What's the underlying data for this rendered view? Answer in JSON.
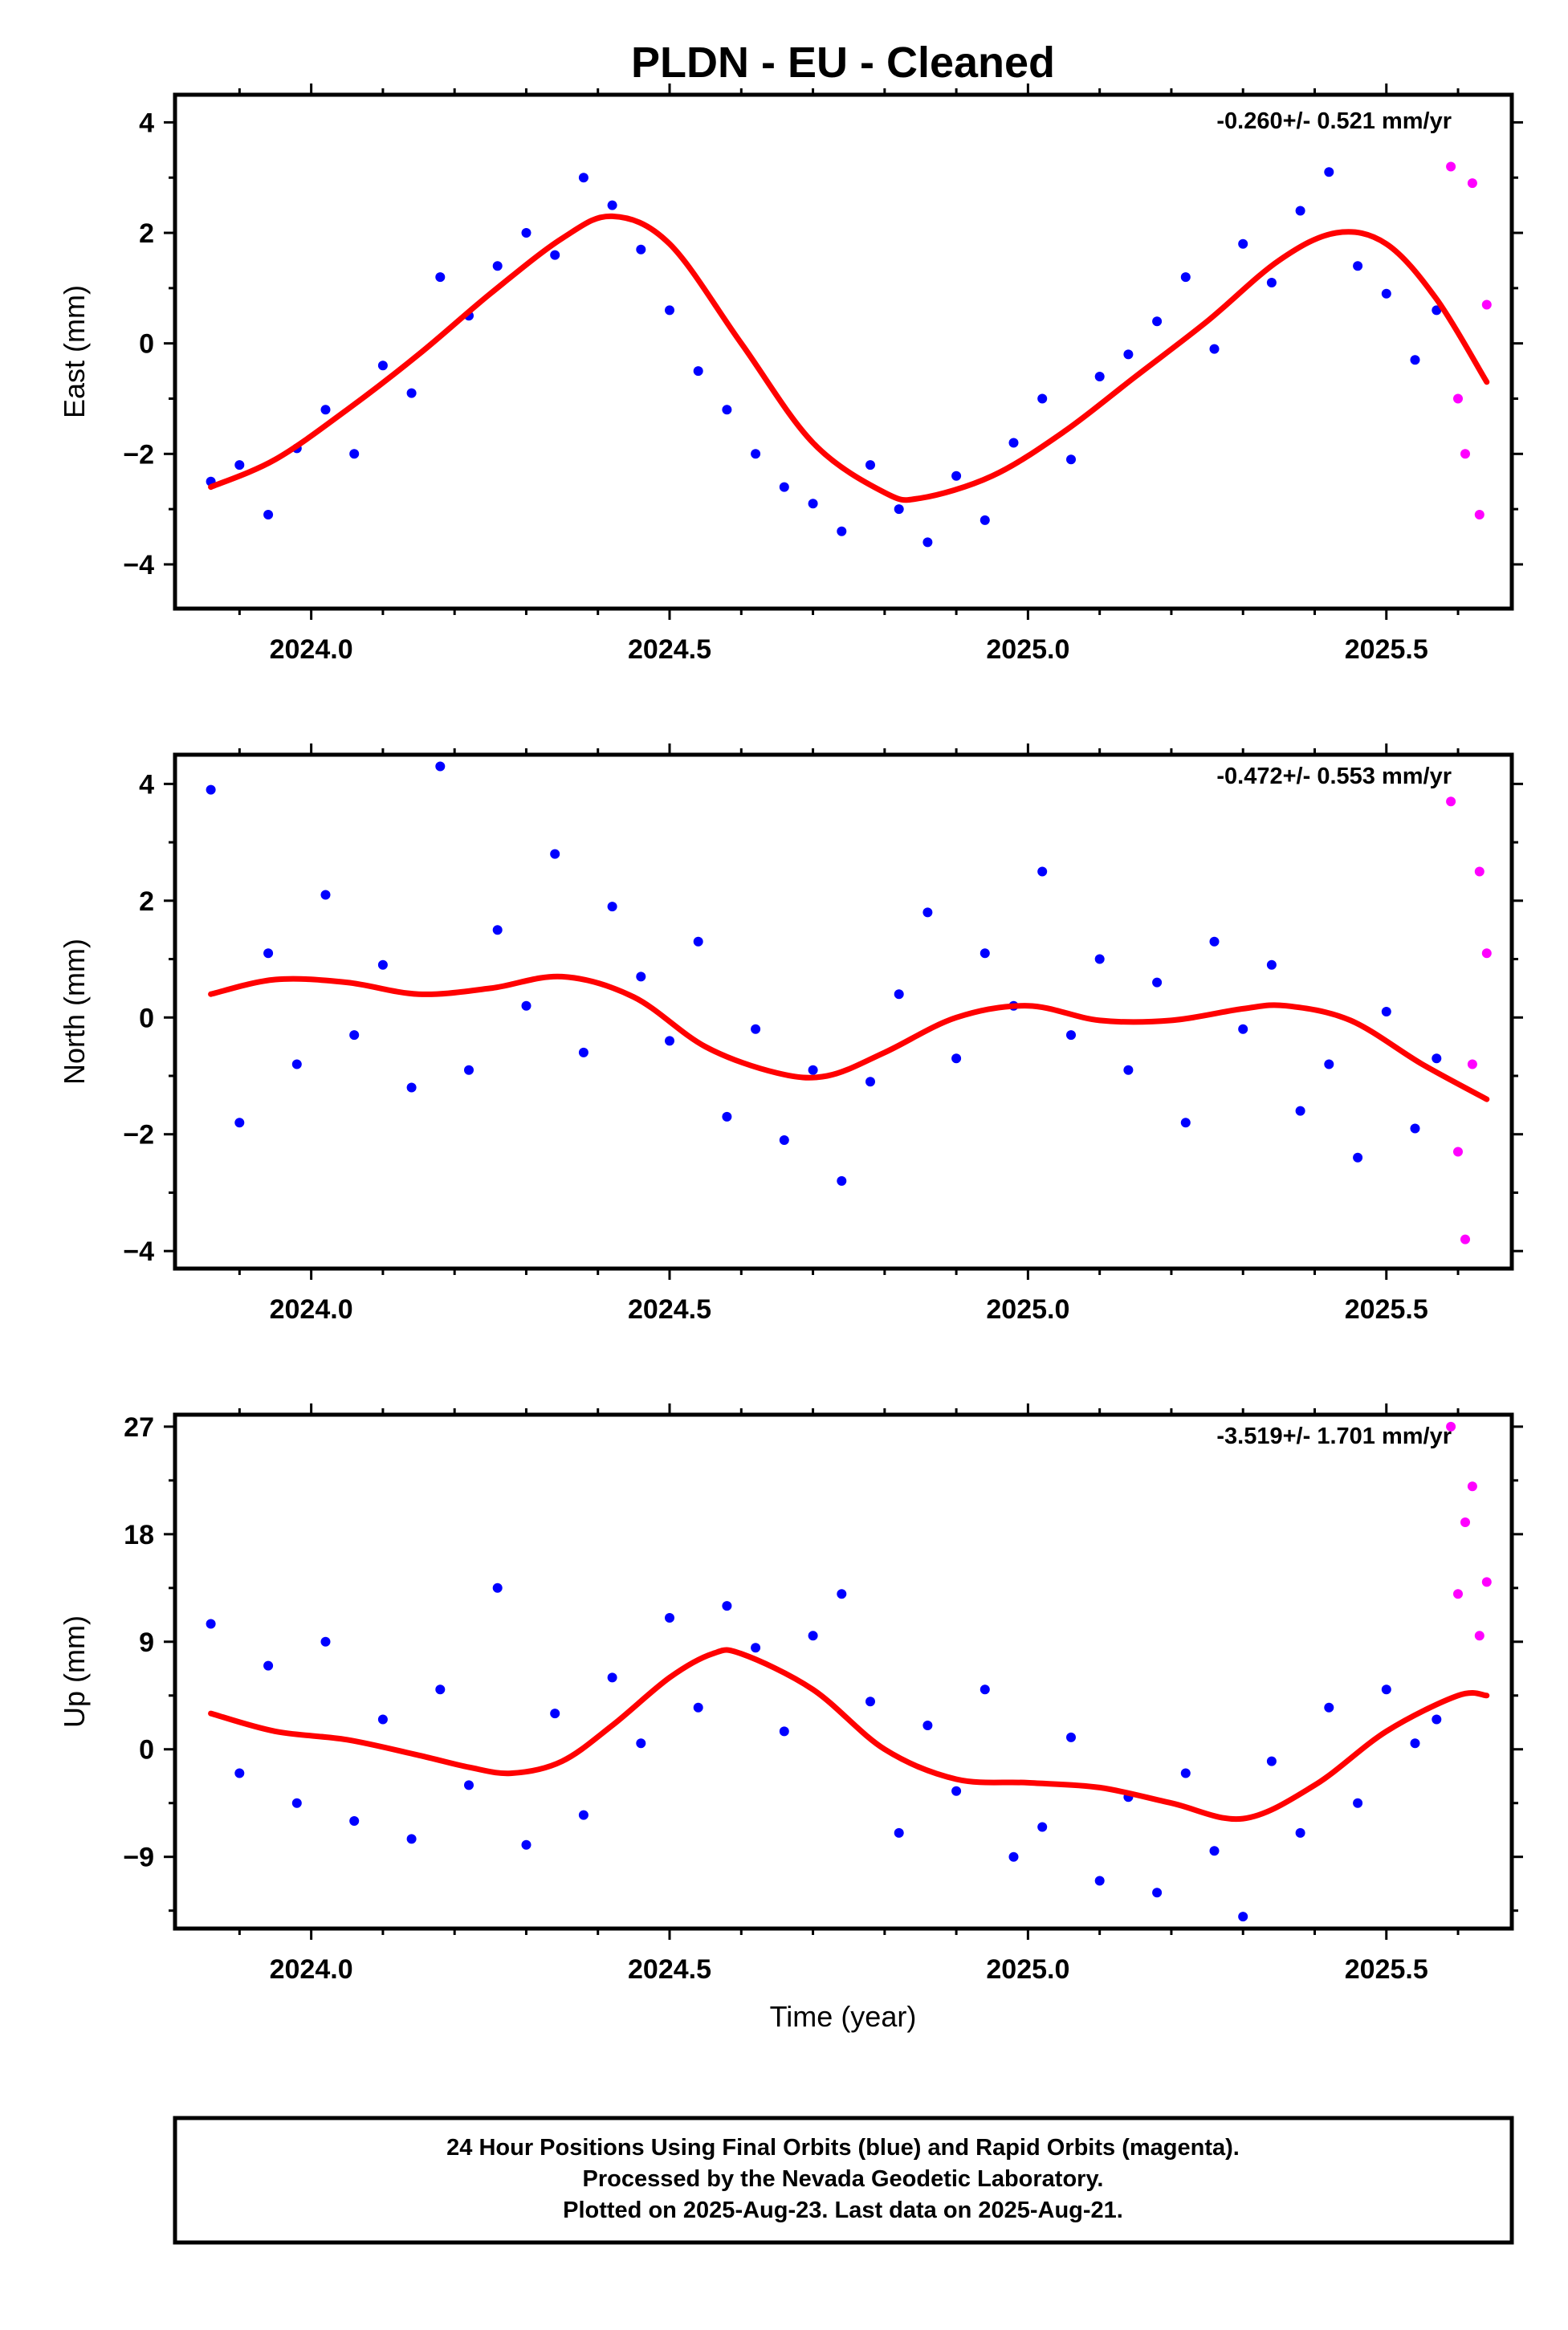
{
  "title": "PLDN  - EU - Cleaned",
  "xlabel": "Time (year)",
  "footer": {
    "line1": "24 Hour Positions Using Final Orbits (blue) and Rapid Orbits (magenta).",
    "line2": "Processed by the Nevada Geodetic Laboratory.",
    "line3": "Plotted on 2025-Aug-23. Last data on 2025-Aug-21."
  },
  "colors": {
    "final": "#0000ff",
    "rapid": "#ff00ff",
    "fit": "#ff0000",
    "frame": "#000000"
  },
  "chart_data": [
    {
      "type": "scatter",
      "ylabel": "East (mm)",
      "rate": "-0.260+/- 0.521 mm/yr",
      "xlim": [
        2023.81,
        2025.675
      ],
      "ylim": [
        -4.8,
        4.5
      ],
      "xticks": [
        2024.0,
        2024.5,
        2025.0,
        2025.5
      ],
      "xtick_labels": [
        "2024.0",
        "2024.5",
        "2025.0",
        "2025.5"
      ],
      "yticks": [
        -4,
        -2,
        0,
        2,
        4
      ],
      "ytick_labels": [
        "−4",
        "−2",
        "0",
        "2",
        "4"
      ],
      "grid": false,
      "series": [
        {
          "kind": "final",
          "x": [
            2023.86,
            2023.9,
            2023.94,
            2023.98,
            2024.02,
            2024.06,
            2024.1,
            2024.14,
            2024.18,
            2024.22,
            2024.26,
            2024.3,
            2024.34,
            2024.38,
            2024.42,
            2024.46,
            2024.5,
            2024.54,
            2024.58,
            2024.62,
            2024.66,
            2024.7,
            2024.74,
            2024.78,
            2024.82,
            2024.86,
            2024.9,
            2024.94,
            2024.98,
            2025.02,
            2025.06,
            2025.1,
            2025.14,
            2025.18,
            2025.22,
            2025.26,
            2025.3,
            2025.34,
            2025.38,
            2025.42,
            2025.46,
            2025.5,
            2025.54,
            2025.57
          ],
          "y": [
            -2.5,
            -2.2,
            -3.1,
            -1.9,
            -1.2,
            -2.0,
            -0.4,
            -0.9,
            1.2,
            0.5,
            1.4,
            2.0,
            1.6,
            3.0,
            2.5,
            1.7,
            0.6,
            -0.5,
            -1.2,
            -2.0,
            -2.6,
            -2.9,
            -3.4,
            -2.2,
            -3.0,
            -3.6,
            -2.4,
            -3.2,
            -1.8,
            -1.0,
            -2.1,
            -0.6,
            -0.2,
            0.4,
            1.2,
            -0.1,
            1.8,
            1.1,
            2.4,
            3.1,
            1.4,
            0.9,
            -0.3,
            0.6
          ]
        },
        {
          "kind": "rapid",
          "x": [
            2025.59,
            2025.6,
            2025.61,
            2025.62,
            2025.63,
            2025.64
          ],
          "y": [
            3.2,
            -1.0,
            -2.0,
            2.9,
            -3.1,
            0.7
          ]
        }
      ],
      "fit": {
        "x": [
          2023.86,
          2023.95,
          2024.05,
          2024.15,
          2024.25,
          2024.35,
          2024.42,
          2024.5,
          2024.6,
          2024.7,
          2024.8,
          2024.85,
          2024.95,
          2025.05,
          2025.15,
          2025.25,
          2025.35,
          2025.43,
          2025.5,
          2025.57,
          2025.64
        ],
        "y": [
          -2.6,
          -2.1,
          -1.2,
          -0.2,
          0.9,
          1.9,
          2.3,
          1.8,
          0.0,
          -1.8,
          -2.7,
          -2.8,
          -2.4,
          -1.6,
          -0.6,
          0.4,
          1.5,
          2.0,
          1.8,
          0.8,
          -0.7
        ]
      }
    },
    {
      "type": "scatter",
      "ylabel": "North (mm)",
      "rate": "-0.472+/- 0.553 mm/yr",
      "xlim": [
        2023.81,
        2025.675
      ],
      "ylim": [
        -4.3,
        4.5
      ],
      "xticks": [
        2024.0,
        2024.5,
        2025.0,
        2025.5
      ],
      "xtick_labels": [
        "2024.0",
        "2024.5",
        "2025.0",
        "2025.5"
      ],
      "yticks": [
        -4,
        -2,
        0,
        2,
        4
      ],
      "ytick_labels": [
        "−4",
        "−2",
        "0",
        "2",
        "4"
      ],
      "grid": false,
      "series": [
        {
          "kind": "final",
          "x": [
            2023.86,
            2023.9,
            2023.94,
            2023.98,
            2024.02,
            2024.06,
            2024.1,
            2024.14,
            2024.18,
            2024.22,
            2024.26,
            2024.3,
            2024.34,
            2024.38,
            2024.42,
            2024.46,
            2024.5,
            2024.54,
            2024.58,
            2024.62,
            2024.66,
            2024.7,
            2024.74,
            2024.78,
            2024.82,
            2024.86,
            2024.9,
            2024.94,
            2024.98,
            2025.02,
            2025.06,
            2025.1,
            2025.14,
            2025.18,
            2025.22,
            2025.26,
            2025.3,
            2025.34,
            2025.38,
            2025.42,
            2025.46,
            2025.5,
            2025.54,
            2025.57
          ],
          "y": [
            3.9,
            -1.8,
            1.1,
            -0.8,
            2.1,
            -0.3,
            0.9,
            -1.2,
            4.3,
            -0.9,
            1.5,
            0.2,
            2.8,
            -0.6,
            1.9,
            0.7,
            -0.4,
            1.3,
            -1.7,
            -0.2,
            -2.1,
            -0.9,
            -2.8,
            -1.1,
            0.4,
            1.8,
            -0.7,
            1.1,
            0.2,
            2.5,
            -0.3,
            1.0,
            -0.9,
            0.6,
            -1.8,
            1.3,
            -0.2,
            0.9,
            -1.6,
            -0.8,
            -2.4,
            0.1,
            -1.9,
            -0.7
          ]
        },
        {
          "kind": "rapid",
          "x": [
            2025.59,
            2025.6,
            2025.61,
            2025.62,
            2025.63,
            2025.64
          ],
          "y": [
            3.7,
            -2.3,
            -3.8,
            -0.8,
            2.5,
            1.1
          ]
        }
      ],
      "fit": {
        "x": [
          2023.86,
          2023.95,
          2024.05,
          2024.15,
          2024.25,
          2024.35,
          2024.45,
          2024.55,
          2024.65,
          2024.72,
          2024.8,
          2024.9,
          2025.0,
          2025.1,
          2025.2,
          2025.3,
          2025.36,
          2025.45,
          2025.55,
          2025.64
        ],
        "y": [
          0.4,
          0.65,
          0.6,
          0.4,
          0.5,
          0.7,
          0.35,
          -0.5,
          -0.95,
          -1.0,
          -0.6,
          0.0,
          0.2,
          -0.05,
          -0.05,
          0.15,
          0.2,
          -0.05,
          -0.8,
          -1.4
        ]
      }
    },
    {
      "type": "scatter",
      "ylabel": "Up (mm)",
      "rate": "-3.519+/- 1.701 mm/yr",
      "xlim": [
        2023.81,
        2025.675
      ],
      "ylim": [
        -15,
        28
      ],
      "xticks": [
        2024.0,
        2024.5,
        2025.0,
        2025.5
      ],
      "xtick_labels": [
        "2024.0",
        "2024.5",
        "2025.0",
        "2025.5"
      ],
      "yticks": [
        -9,
        0,
        9,
        18,
        27
      ],
      "ytick_labels": [
        "−9",
        "0",
        "9",
        "18",
        "27"
      ],
      "grid": false,
      "series": [
        {
          "kind": "final",
          "x": [
            2023.86,
            2023.9,
            2023.94,
            2023.98,
            2024.02,
            2024.06,
            2024.1,
            2024.14,
            2024.18,
            2024.22,
            2024.26,
            2024.3,
            2024.34,
            2024.38,
            2024.42,
            2024.46,
            2024.5,
            2024.54,
            2024.58,
            2024.62,
            2024.66,
            2024.7,
            2024.74,
            2024.78,
            2024.82,
            2024.86,
            2024.9,
            2024.94,
            2024.98,
            2025.02,
            2025.06,
            2025.1,
            2025.14,
            2025.18,
            2025.22,
            2025.26,
            2025.3,
            2025.34,
            2025.38,
            2025.42,
            2025.46,
            2025.5,
            2025.54,
            2025.57
          ],
          "y": [
            10.5,
            -2.0,
            7.0,
            -4.5,
            9.0,
            -6.0,
            2.5,
            -7.5,
            5.0,
            -3.0,
            13.5,
            -8.0,
            3.0,
            -5.5,
            6.0,
            0.5,
            11.0,
            3.5,
            12.0,
            8.5,
            1.5,
            9.5,
            13.0,
            4.0,
            -7.0,
            2.0,
            -3.5,
            5.0,
            -9.0,
            -6.5,
            1.0,
            -11.0,
            -4.0,
            -12.0,
            -2.0,
            -8.5,
            -14.0,
            -1.0,
            -7.0,
            3.5,
            -4.5,
            5.0,
            0.5,
            2.5
          ]
        },
        {
          "kind": "rapid",
          "x": [
            2025.59,
            2025.6,
            2025.61,
            2025.62,
            2025.63,
            2025.64
          ],
          "y": [
            27.0,
            13.0,
            19.0,
            22.0,
            9.5,
            14.0
          ]
        }
      ],
      "fit": {
        "x": [
          2023.86,
          2023.95,
          2024.05,
          2024.15,
          2024.22,
          2024.28,
          2024.35,
          2024.42,
          2024.5,
          2024.56,
          2024.6,
          2024.7,
          2024.8,
          2024.9,
          2025.0,
          2025.1,
          2025.2,
          2025.3,
          2025.4,
          2025.5,
          2025.6,
          2025.64
        ],
        "y": [
          3.0,
          1.5,
          0.8,
          -0.5,
          -1.5,
          -2.0,
          -1.0,
          2.0,
          6.0,
          8.0,
          8.0,
          5.0,
          0.0,
          -2.5,
          -2.8,
          -3.2,
          -4.5,
          -5.8,
          -3.0,
          1.5,
          4.5,
          4.5
        ]
      }
    }
  ]
}
